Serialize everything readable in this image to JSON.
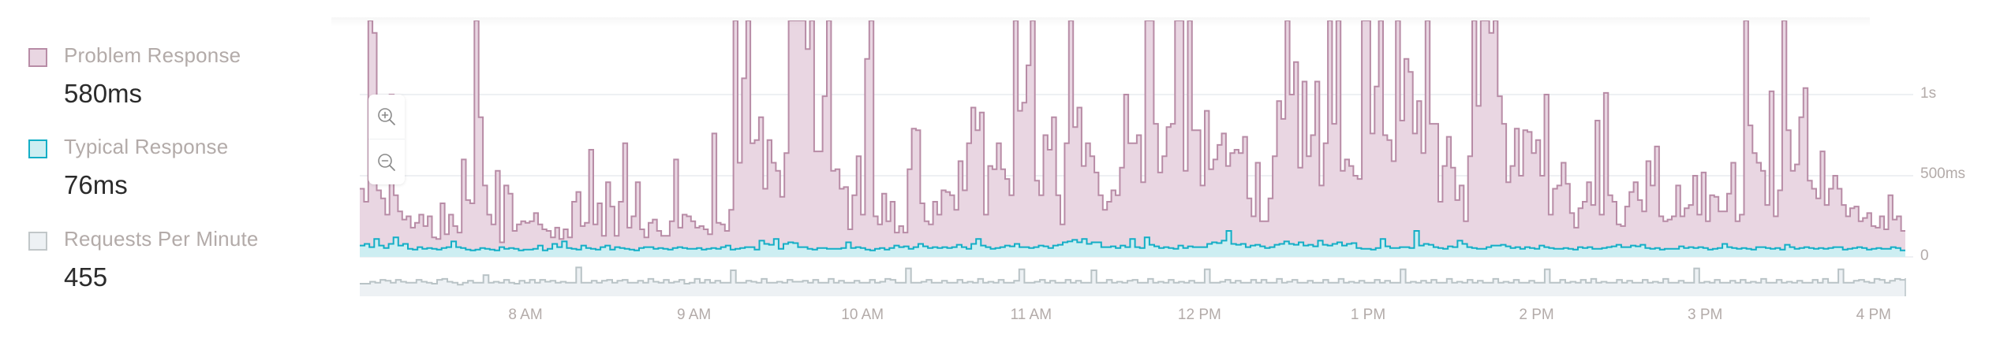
{
  "legend": {
    "items": [
      {
        "label": "Problem Response",
        "value": "580ms",
        "fill": "#e9d6e2",
        "stroke": "#b88ca6"
      },
      {
        "label": "Typical Response",
        "value": "76ms",
        "fill": "#cdeef2",
        "stroke": "#13aec6"
      },
      {
        "label": "Requests Per Minute",
        "value": "455",
        "fill": "#edf1f4",
        "stroke": "#c1c7c9"
      }
    ]
  },
  "zoom_controls": {
    "zoom_in_icon": "zoom-in-icon",
    "zoom_out_icon": "zoom-out-icon"
  },
  "colors": {
    "problem_fill": "#e9d6e2",
    "problem_stroke": "#b88ca6",
    "typical_fill": "#cdeef2",
    "typical_stroke": "#13aec6",
    "requests_fill": "#edf1f4",
    "requests_stroke": "#b9c3c6",
    "gridline": "#eef0f3",
    "axis_text": "#b3aba9"
  },
  "chart_data": {
    "type": "area",
    "title": "",
    "xlabel": "",
    "ylabel": "",
    "step": true,
    "x_ticks": [
      "8 AM",
      "9 AM",
      "10 AM",
      "11 AM",
      "12 PM",
      "1 PM",
      "2 PM",
      "3 PM",
      "4 PM"
    ],
    "y_ticks": [
      "0",
      "500ms",
      "1s"
    ],
    "y_tick_values_ms": [
      0,
      500,
      1000
    ],
    "ylim_ms": [
      0,
      1456
    ],
    "x_range": [
      "~7:01 AM",
      "~4:11 PM"
    ],
    "grid": true,
    "legend_position": "left",
    "series": [
      {
        "name": "Problem Response",
        "unit": "ms",
        "summary": "580ms",
        "values": [
          420,
          340,
          1460,
          1380,
          410,
          360,
          260,
          1000,
          380,
          280,
          230,
          250,
          180,
          210,
          260,
          190,
          250,
          120,
          110,
          330,
          140,
          260,
          190,
          150,
          600,
          350,
          330,
          1460,
          860,
          440,
          260,
          200,
          530,
          90,
          440,
          390,
          160,
          200,
          220,
          210,
          220,
          270,
          200,
          170,
          160,
          120,
          180,
          110,
          170,
          120,
          340,
          400,
          190,
          210,
          660,
          200,
          330,
          130,
          460,
          310,
          130,
          340,
          700,
          180,
          250,
          460,
          170,
          120,
          210,
          230,
          160,
          130,
          130,
          220,
          600,
          180,
          260,
          250,
          220,
          180,
          190,
          170,
          140,
          760,
          210,
          200,
          160,
          290,
          1460,
          580,
          1100,
          1460,
          700,
          720,
          860,
          420,
          720,
          580,
          530,
          370,
          640,
          1460,
          1460,
          1460,
          1460,
          1280,
          1460,
          650,
          650,
          990,
          1460,
          530,
          540,
          420,
          430,
          170,
          380,
          620,
          260,
          1220,
          1460,
          250,
          200,
          390,
          220,
          340,
          150,
          190,
          150,
          540,
          790,
          780,
          330,
          220,
          200,
          340,
          260,
          410,
          400,
          380,
          290,
          590,
          410,
          700,
          920,
          780,
          890,
          260,
          560,
          540,
          700,
          540,
          480,
          380,
          1460,
          900,
          950,
          1180,
          1460,
          470,
          380,
          750,
          660,
          860,
          380,
          200,
          700,
          1460,
          800,
          920,
          560,
          700,
          620,
          520,
          380,
          290,
          340,
          410,
          380,
          550,
          1000,
          700,
          700,
          750,
          460,
          1460,
          1460,
          820,
          520,
          620,
          800,
          820,
          1460,
          1460,
          530,
          1460,
          780,
          780,
          440,
          900,
          540,
          600,
          690,
          760,
          560,
          640,
          660,
          640,
          740,
          360,
          250,
          580,
          220,
          220,
          360,
          620,
          960,
          850,
          1460,
          1000,
          1200,
          550,
          1080,
          620,
          750,
          1080,
          440,
          700,
          1460,
          820,
          1460,
          530,
          600,
          560,
          500,
          480,
          1460,
          1460,
          760,
          1050,
          1460,
          750,
          720,
          590,
          1460,
          840,
          1220,
          1140,
          760,
          960,
          640,
          1460,
          820,
          820,
          340,
          560,
          740,
          550,
          350,
          440,
          220,
          620,
          1460,
          930,
          1460,
          1460,
          1380,
          1460,
          990,
          820,
          460,
          560,
          790,
          500,
          780,
          770,
          640,
          720,
          500,
          1000,
          260,
          420,
          440,
          580,
          450,
          270,
          180,
          300,
          340,
          460,
          320,
          840,
          260,
          1010,
          380,
          340,
          200,
          190,
          310,
          400,
          460,
          350,
          280,
          590,
          440,
          680,
          250,
          220,
          230,
          250,
          440,
          250,
          300,
          320,
          500,
          260,
          520,
          220,
          380,
          370,
          280,
          280,
          390,
          580,
          220,
          260,
          1460,
          810,
          640,
          580,
          530,
          320,
          1020,
          250,
          410,
          1460,
          780,
          530,
          570,
          860,
          1040,
          470,
          420,
          360,
          650,
          320,
          420,
          500,
          420,
          320,
          250,
          300,
          310,
          220,
          240,
          270,
          190,
          180,
          250,
          170,
          380,
          230,
          250,
          160
        ]
      },
      {
        "name": "Typical Response",
        "unit": "ms",
        "summary": "76ms",
        "values": [
          70,
          80,
          60,
          110,
          70,
          55,
          80,
          120,
          70,
          80,
          50,
          45,
          60,
          50,
          55,
          50,
          45,
          55,
          60,
          95,
          60,
          55,
          45,
          40,
          45,
          55,
          50,
          45,
          40,
          60,
          50,
          55,
          50,
          40,
          45,
          45,
          50,
          70,
          40,
          50,
          80,
          60,
          95,
          55,
          50,
          45,
          70,
          55,
          50,
          45,
          60,
          70,
          45,
          60,
          55,
          50,
          45,
          40,
          55,
          60,
          60,
          50,
          55,
          50,
          45,
          55,
          60,
          55,
          50,
          50,
          55,
          45,
          50,
          55,
          50,
          60,
          70,
          45,
          50,
          55,
          60,
          60,
          45,
          100,
          80,
          75,
          110,
          50,
          80,
          90,
          85,
          60,
          60,
          50,
          45,
          55,
          55,
          50,
          50,
          50,
          55,
          90,
          55,
          60,
          55,
          45,
          40,
          50,
          55,
          45,
          55,
          70,
          60,
          65,
          50,
          60,
          80,
          65,
          55,
          60,
          55,
          60,
          55,
          60,
          75,
          60,
          50,
          80,
          110,
          70,
          60,
          50,
          55,
          60,
          70,
          65,
          80,
          60,
          60,
          55,
          60,
          70,
          65,
          55,
          70,
          75,
          90,
          95,
          105,
          90,
          110,
          80,
          90,
          90,
          60,
          60,
          65,
          55,
          70,
          60,
          110,
          60,
          55,
          120,
          75,
          65,
          55,
          60,
          55,
          50,
          70,
          55,
          65,
          60,
          60,
          60,
          80,
          90,
          85,
          100,
          160,
          80,
          75,
          80,
          60,
          70,
          75,
          65,
          55,
          60,
          75,
          80,
          95,
          80,
          75,
          90,
          70,
          75,
          65,
          100,
          75,
          70,
          80,
          90,
          70,
          80,
          85,
          55,
          50,
          50,
          45,
          55,
          110,
          65,
          55,
          55,
          60,
          60,
          55,
          160,
          70,
          80,
          75,
          60,
          55,
          50,
          65,
          60,
          100,
          80,
          60,
          55,
          50,
          50,
          60,
          70,
          70,
          75,
          65,
          55,
          60,
          50,
          60,
          55,
          50,
          70,
          60,
          55,
          50,
          50,
          55,
          50,
          45,
          60,
          55,
          60,
          50,
          50,
          55,
          60,
          65,
          75,
          60,
          60,
          70,
          65,
          75,
          55,
          50,
          55,
          45,
          50,
          50,
          50,
          65,
          55,
          60,
          55,
          60,
          55,
          45,
          50,
          55,
          80,
          60,
          55,
          50,
          55,
          50,
          45,
          60,
          60,
          55,
          50,
          55,
          45,
          75,
          60,
          50,
          55,
          60,
          55,
          50,
          55,
          50,
          55,
          60,
          60,
          45,
          50,
          55,
          60,
          55,
          45,
          50,
          55,
          50,
          50,
          60,
          55,
          40
        ]
      },
      {
        "name": "Requests Per Minute",
        "unit": "rpm",
        "summary": "455",
        "values": [
          430,
          430,
          450,
          440,
          470,
          460,
          440,
          470,
          450,
          440,
          440,
          470,
          450,
          440,
          430,
          470,
          480,
          450,
          440,
          420,
          440,
          460,
          440,
          440,
          520,
          440,
          450,
          440,
          470,
          440,
          430,
          460,
          440,
          470,
          440,
          470,
          450,
          460,
          440,
          450,
          440,
          440,
          600,
          440,
          440,
          460,
          440,
          460,
          470,
          440,
          460,
          470,
          440,
          440,
          460,
          440,
          480,
          450,
          440,
          470,
          440,
          450,
          470,
          430,
          440,
          480,
          440,
          470,
          440,
          460,
          440,
          440,
          570,
          440,
          440,
          460,
          450,
          440,
          480,
          440,
          440,
          450,
          440,
          470,
          450,
          450,
          460,
          440,
          470,
          440,
          440,
          480,
          440,
          460,
          440,
          440,
          460,
          440,
          440,
          470,
          440,
          450,
          480,
          470,
          440,
          440,
          590,
          440,
          440,
          450,
          470,
          440,
          440,
          460,
          440,
          440,
          470,
          440,
          450,
          440,
          480,
          440,
          450,
          440,
          470,
          440,
          440,
          460,
          580,
          440,
          440,
          450,
          470,
          440,
          460,
          440,
          440,
          470,
          440,
          460,
          440,
          440,
          570,
          440,
          440,
          470,
          440,
          450,
          440,
          460,
          470,
          440,
          440,
          480,
          440,
          450,
          440,
          470,
          440,
          450,
          440,
          460,
          440,
          440,
          580,
          440,
          440,
          450,
          470,
          440,
          460,
          440,
          440,
          470,
          440,
          470,
          440,
          440,
          480,
          440,
          450,
          470,
          440,
          440,
          460,
          440,
          440,
          470,
          440,
          440,
          480,
          440,
          450,
          440,
          460,
          440,
          440,
          470,
          440,
          460,
          440,
          440,
          580,
          440,
          450,
          440,
          460,
          440,
          470,
          440,
          440,
          480,
          440,
          450,
          440,
          470,
          440,
          460,
          440,
          440,
          480,
          440,
          450,
          440,
          470,
          440,
          440,
          460,
          440,
          440,
          580,
          440,
          440,
          470,
          440,
          450,
          440,
          470,
          440,
          480,
          440,
          450,
          440,
          440,
          470,
          440,
          460,
          440,
          440,
          470,
          440,
          450,
          440,
          480,
          440,
          440,
          460,
          440,
          440,
          590,
          440,
          450,
          440,
          470,
          440,
          440,
          460,
          440,
          470,
          440,
          450,
          440,
          480,
          440,
          440,
          470,
          440,
          450,
          440,
          460,
          440,
          440,
          470,
          440,
          480,
          440,
          440,
          580,
          440,
          440,
          460,
          470,
          450,
          440,
          480,
          470,
          440,
          460,
          480,
          470
        ]
      }
    ]
  }
}
